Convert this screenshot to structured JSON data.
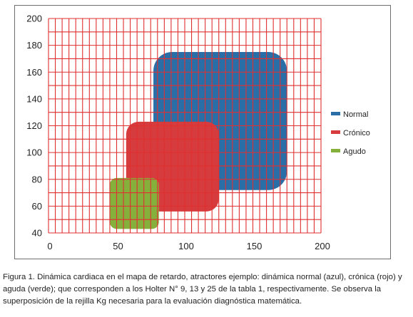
{
  "chart_data": {
    "type": "scatter",
    "title": "",
    "xlabel": "",
    "ylabel": "",
    "xlim": [
      0,
      200
    ],
    "ylim": [
      40,
      200
    ],
    "x_ticks": [
      "0",
      "50",
      "100",
      "150",
      "200"
    ],
    "y_ticks": [
      "40",
      "60",
      "80",
      "100",
      "120",
      "140",
      "160",
      "180",
      "200"
    ],
    "grid": true,
    "grid_color": "#e03030",
    "legend_position": "right",
    "series": [
      {
        "name": "Normal",
        "color": "#2a6ea8",
        "region": {
          "x": [
            77,
            175
          ],
          "y": [
            72,
            175
          ]
        }
      },
      {
        "name": "Crónico",
        "color": "#d63b3e",
        "region": {
          "x": [
            57,
            125
          ],
          "y": [
            56,
            123
          ]
        }
      },
      {
        "name": "Agudo",
        "color": "#86b03c",
        "region": {
          "x": [
            45,
            81
          ],
          "y": [
            43,
            81
          ]
        }
      }
    ]
  },
  "caption": "Figura 1. Dinámica cardiaca en el mapa de retardo, atractores ejemplo: dinámica normal (azul), crónica (rojo) y aguda (verde); que corresponden a los Holter N° 9, 13 y 25 de la tabla 1, respectivamente. Se observa la superposición de la rejilla Kg necesaria para la evaluación diagnóstica matemática."
}
